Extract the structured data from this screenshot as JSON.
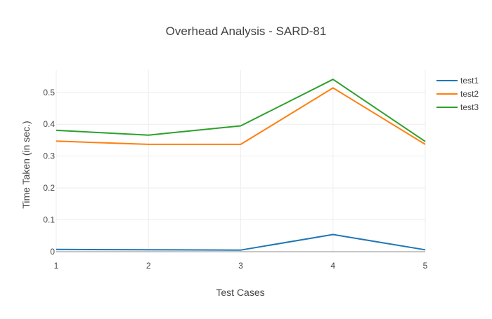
{
  "chart_data": {
    "type": "line",
    "title": "Overhead Analysis - SARD-81",
    "xlabel": "Test Cases",
    "ylabel": "Time Taken (in sec.)",
    "x": [
      1,
      2,
      3,
      4,
      5
    ],
    "x_tick_labels": [
      "1",
      "2",
      "3",
      "4",
      "5"
    ],
    "y_tick_values": [
      0,
      0.1,
      0.2,
      0.3,
      0.4,
      0.5
    ],
    "y_tick_labels": [
      "0",
      "0.1",
      "0.2",
      "0.3",
      "0.4",
      "0.5"
    ],
    "xlim": [
      1,
      5
    ],
    "ylim": [
      0,
      0.57
    ],
    "grid": true,
    "legend_position": "top-right",
    "series": [
      {
        "name": "test1",
        "color": "#1f77b4",
        "values": [
          0.007,
          0.006,
          0.005,
          0.054,
          0.006
        ]
      },
      {
        "name": "test2",
        "color": "#ff7f0e",
        "values": [
          0.347,
          0.337,
          0.337,
          0.514,
          0.337
        ]
      },
      {
        "name": "test3",
        "color": "#2ca02c",
        "values": [
          0.381,
          0.366,
          0.395,
          0.541,
          0.346
        ]
      }
    ]
  }
}
